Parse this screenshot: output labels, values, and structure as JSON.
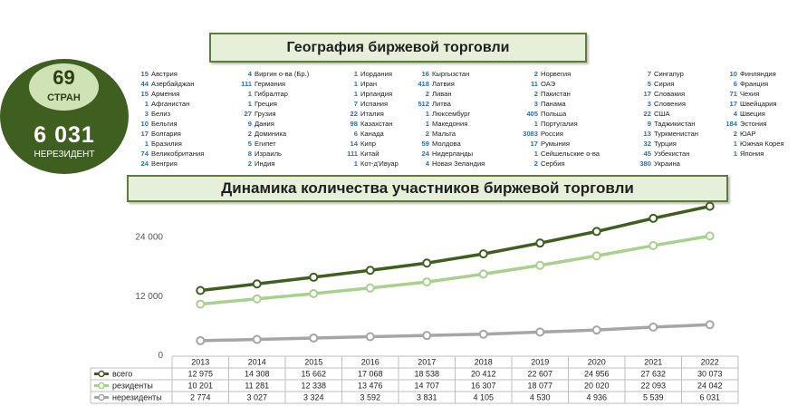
{
  "geography_title": "География биржевой торговли",
  "dynamics_title": "Динамика количества участников биржевой торговли",
  "stats": {
    "countries_number": "69",
    "countries_label": "СТРАН",
    "nonresidents_number": "6 031",
    "nonresidents_label": "НЕРЕЗИДЕНТ"
  },
  "countries": [
    [
      {
        "count": "15",
        "name": "Австрия"
      },
      {
        "count": "44",
        "name": "Азербайджан"
      },
      {
        "count": "15",
        "name": "Армения"
      },
      {
        "count": "1",
        "name": "Афганистан"
      },
      {
        "count": "3",
        "name": "Белиз"
      },
      {
        "count": "10",
        "name": "Бельгия"
      },
      {
        "count": "17",
        "name": "Болгария"
      },
      {
        "count": "1",
        "name": "Бразилия"
      },
      {
        "count": "74",
        "name": "Великобритания"
      },
      {
        "count": "24",
        "name": "Венгрия"
      }
    ],
    [
      {
        "count": "4",
        "name": "Виргин о-ва (Бр.)"
      },
      {
        "count": "111",
        "name": "Германия"
      },
      {
        "count": "1",
        "name": "Гибралтар"
      },
      {
        "count": "1",
        "name": "Греция"
      },
      {
        "count": "27",
        "name": "Грузия"
      },
      {
        "count": "9",
        "name": "Дания"
      },
      {
        "count": "2",
        "name": "Доминика"
      },
      {
        "count": "5",
        "name": "Египет"
      },
      {
        "count": "8",
        "name": "Израиль"
      },
      {
        "count": "2",
        "name": "Индия"
      }
    ],
    [
      {
        "count": "1",
        "name": "Иордания"
      },
      {
        "count": "1",
        "name": "Иран"
      },
      {
        "count": "1",
        "name": "Ирландия"
      },
      {
        "count": "7",
        "name": "Испания"
      },
      {
        "count": "22",
        "name": "Италия"
      },
      {
        "count": "98",
        "name": "Казахстан"
      },
      {
        "count": "6",
        "name": "Канада"
      },
      {
        "count": "14",
        "name": "Кипр"
      },
      {
        "count": "111",
        "name": "Китай"
      },
      {
        "count": "1",
        "name": "Кот-д'Ивуар"
      }
    ],
    [
      {
        "count": "16",
        "name": "Кыргызстан"
      },
      {
        "count": "418",
        "name": "Латвия"
      },
      {
        "count": "2",
        "name": "Ливан"
      },
      {
        "count": "512",
        "name": "Литва"
      },
      {
        "count": "1",
        "name": "Люксембург"
      },
      {
        "count": "1",
        "name": "Македония"
      },
      {
        "count": "2",
        "name": "Мальта"
      },
      {
        "count": "59",
        "name": "Молдова"
      },
      {
        "count": "24",
        "name": "Нидерланды"
      },
      {
        "count": "4",
        "name": "Новая Зеландия"
      }
    ],
    [
      {
        "count": "2",
        "name": "Норвегия"
      },
      {
        "count": "11",
        "name": "ОАЭ"
      },
      {
        "count": "2",
        "name": "Пакистан"
      },
      {
        "count": "3",
        "name": "Панама"
      },
      {
        "count": "405",
        "name": "Польша"
      },
      {
        "count": "1",
        "name": "Португалия"
      },
      {
        "count": "3083",
        "name": "Россия"
      },
      {
        "count": "17",
        "name": "Румыния"
      },
      {
        "count": "1",
        "name": "Сейшельские о-ва"
      },
      {
        "count": "2",
        "name": "Сербия"
      }
    ],
    [
      {
        "count": "7",
        "name": "Сингапур"
      },
      {
        "count": "5",
        "name": "Сирия"
      },
      {
        "count": "17",
        "name": "Словакия"
      },
      {
        "count": "3",
        "name": "Словения"
      },
      {
        "count": "22",
        "name": "США"
      },
      {
        "count": "9",
        "name": "Таджикистан"
      },
      {
        "count": "13",
        "name": "Туркменистан"
      },
      {
        "count": "32",
        "name": "Турция"
      },
      {
        "count": "45",
        "name": "Узбекистан"
      },
      {
        "count": "380",
        "name": "Украина"
      }
    ],
    [
      {
        "count": "10",
        "name": "Финляндия"
      },
      {
        "count": "6",
        "name": "Франция"
      },
      {
        "count": "71",
        "name": "Чехия"
      },
      {
        "count": "17",
        "name": "Швейцария"
      },
      {
        "count": "4",
        "name": "Швеция"
      },
      {
        "count": "184",
        "name": "Эстония"
      },
      {
        "count": "2",
        "name": "ЮАР"
      },
      {
        "count": "1",
        "name": "Южная Корея"
      },
      {
        "count": "1",
        "name": "Япония"
      }
    ]
  ],
  "colors": {
    "total": "#3f5f21",
    "residents": "#a9d18e",
    "nonresidents": "#a6a6a6",
    "banner_bg": "#e6f0d9",
    "country_count": "#2f6fb0"
  },
  "chart_data": {
    "type": "line",
    "categories": [
      "2013",
      "2014",
      "2015",
      "2016",
      "2017",
      "2018",
      "2019",
      "2020",
      "2021",
      "2022"
    ],
    "series": [
      {
        "name": "всего",
        "values": [
          12975,
          14308,
          15662,
          17068,
          18538,
          20412,
          22607,
          24956,
          27632,
          30073
        ]
      },
      {
        "name": "резиденты",
        "values": [
          10201,
          11281,
          12338,
          13476,
          14707,
          16307,
          18077,
          20020,
          22093,
          24042
        ]
      },
      {
        "name": "нерезиденты",
        "values": [
          2774,
          3027,
          3324,
          3592,
          3831,
          4105,
          4530,
          4936,
          5539,
          6031
        ]
      }
    ],
    "table_values": [
      [
        "12 975",
        "14 308",
        "15 662",
        "17 068",
        "18 538",
        "20 412",
        "22 607",
        "24 956",
        "27 632",
        "30 073"
      ],
      [
        "10 201",
        "11 281",
        "12 338",
        "13 476",
        "14 707",
        "16 307",
        "18 077",
        "20 020",
        "22 093",
        "24 042"
      ],
      [
        "2 774",
        "3 027",
        "3 324",
        "3 592",
        "3 831",
        "4 105",
        "4 530",
        "4 936",
        "5 539",
        "6 031"
      ]
    ],
    "y_ticks": [
      "24 000",
      "12 000",
      "0"
    ],
    "y_tick_values": [
      24000,
      12000,
      0
    ],
    "ylim": [
      0,
      30000
    ],
    "grid": false,
    "legend": "data table"
  }
}
